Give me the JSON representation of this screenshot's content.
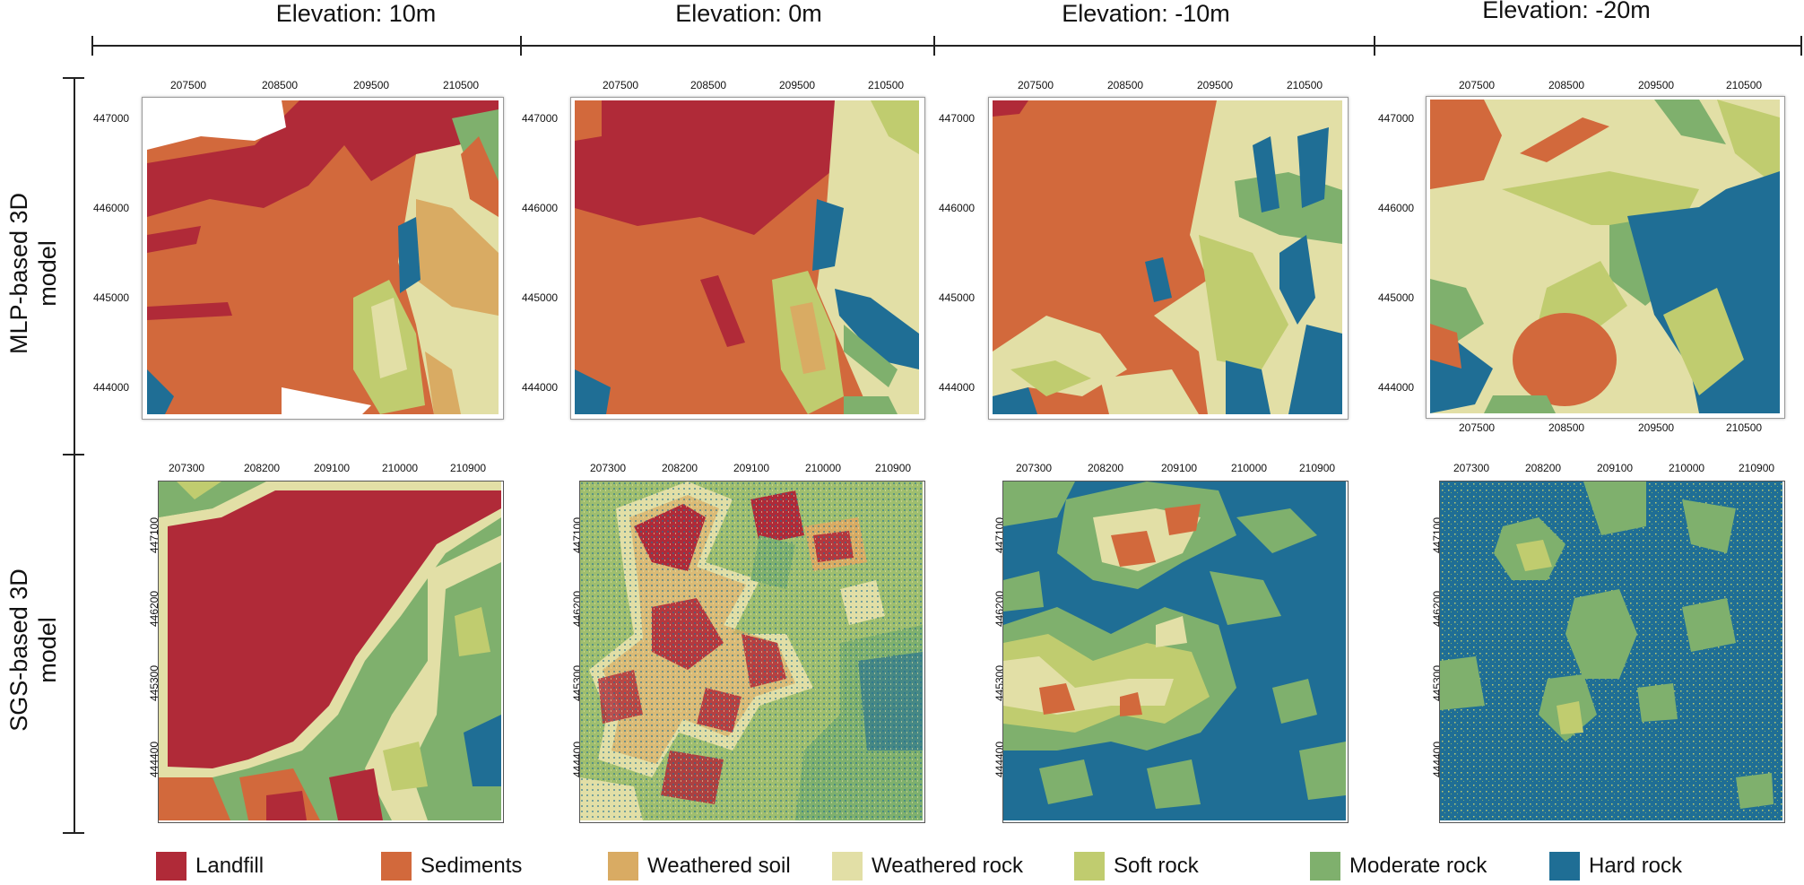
{
  "columns": [
    {
      "title": "Elevation: 10m"
    },
    {
      "title": "Elevation: 0m"
    },
    {
      "title": "Elevation: -10m"
    },
    {
      "title": "Elevation: -20m"
    }
  ],
  "rows": [
    {
      "label_line1": "MLP-based 3D",
      "label_line2": "model"
    },
    {
      "label_line1": "SGS-based 3D",
      "label_line2": "model"
    }
  ],
  "mlp_axes": {
    "x_ticks": [
      "207500",
      "208500",
      "209500",
      "210500"
    ],
    "y_ticks": [
      "447000",
      "446000",
      "445000",
      "444000"
    ]
  },
  "sgs_axes": {
    "x_ticks": [
      "207300",
      "208200",
      "209100",
      "210000",
      "210900"
    ],
    "y_ticks": [
      "447100",
      "446200",
      "445300",
      "444400"
    ]
  },
  "legend": [
    {
      "label": "Landfill",
      "color": "#b02a38"
    },
    {
      "label": "Sediments",
      "color": "#d2693c"
    },
    {
      "label": "Weathered soil",
      "color": "#d9ab63"
    },
    {
      "label": "Weathered rock",
      "color": "#e2dfa6"
    },
    {
      "label": "Soft rock",
      "color": "#c0cc6f"
    },
    {
      "label": "Moderate rock",
      "color": "#7fb06d"
    },
    {
      "label": "Hard rock",
      "color": "#1f6e95"
    }
  ]
}
